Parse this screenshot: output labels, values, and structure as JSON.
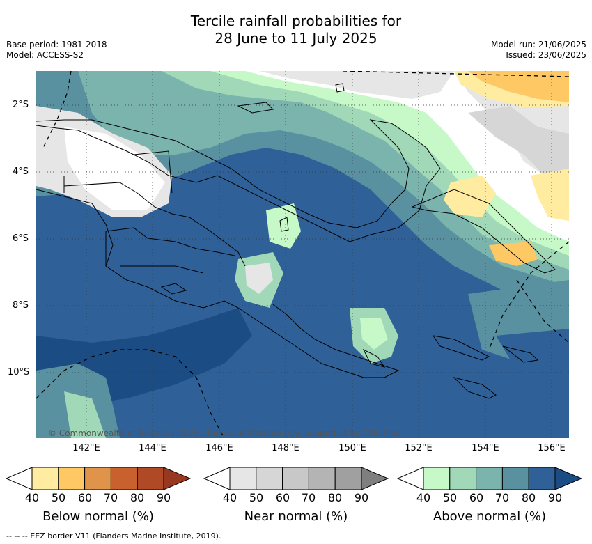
{
  "title_line1": "Tercile rainfall probabilities for",
  "title_line2": "28 June to 11 July 2025",
  "base_period": "Base period: 1981-2018",
  "model": "Model: ACCESS-S2",
  "model_run": "Model run: 21/06/2025",
  "issued": "Issued: 23/06/2025",
  "copyright": "© Commonwealth of Australia 2025, Bureau of Meteorology, supported by COSPPac",
  "lat_labels": [
    "2°S",
    "4°S",
    "6°S",
    "8°S",
    "10°S"
  ],
  "lon_labels": [
    "142°E",
    "144°E",
    "146°E",
    "148°E",
    "150°E",
    "152°E",
    "154°E",
    "156°E"
  ],
  "colorbars": {
    "below": {
      "title": "Below normal (%)",
      "ticks": [
        "40",
        "50",
        "60",
        "70",
        "80",
        "90"
      ],
      "colors": [
        "#ffffff",
        "#ffeca0",
        "#fec965",
        "#e0934a",
        "#c8612e",
        "#b04a26",
        "#993820"
      ]
    },
    "near": {
      "title": "Near normal (%)",
      "ticks": [
        "40",
        "50",
        "60",
        "70",
        "80",
        "90"
      ],
      "colors": [
        "#ffffff",
        "#e6e6e6",
        "#d6d6d6",
        "#c8c8c8",
        "#b4b4b4",
        "#a0a0a0",
        "#7f7f7f"
      ]
    },
    "above": {
      "title": "Above normal (%)",
      "ticks": [
        "40",
        "50",
        "60",
        "70",
        "80",
        "90"
      ],
      "colors": [
        "#ffffff",
        "#c7f9c8",
        "#a1d8b7",
        "#7bb3ad",
        "#5a91a0",
        "#2f6198",
        "#1b4d84"
      ]
    }
  },
  "footnote": "-- -- -- EEZ border V11 (Flanders Marine Institute, 2019)."
}
